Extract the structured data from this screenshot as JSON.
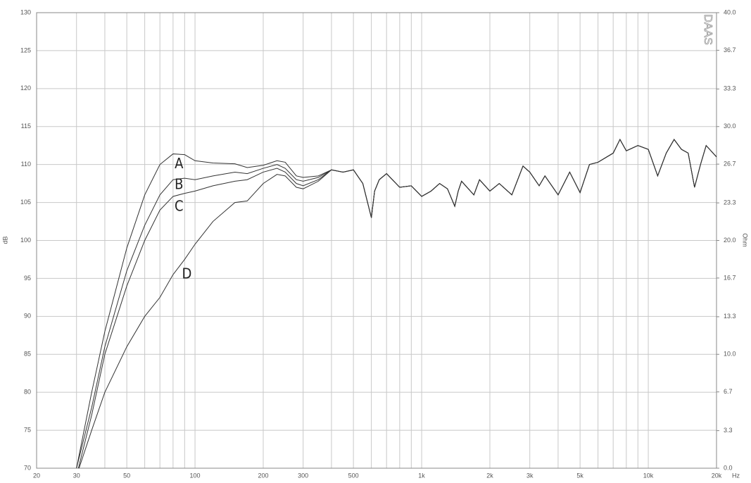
{
  "chart_data": {
    "type": "line",
    "watermark": "DAAS",
    "y_label": "dB",
    "y2_label": "Ohm",
    "x_unit": "Hz",
    "xscale": "log",
    "x": [
      30,
      35,
      40,
      50,
      60,
      70,
      80,
      90,
      100,
      120,
      150,
      170,
      200,
      230,
      250,
      280,
      300,
      350,
      400,
      450,
      500,
      550,
      600,
      620,
      650,
      700,
      800,
      900,
      1000,
      1100,
      1200,
      1300,
      1400,
      1450,
      1500,
      1700,
      1800,
      2000,
      2200,
      2500,
      2800,
      3000,
      3300,
      3500,
      4000,
      4500,
      5000,
      5500,
      6000,
      7000,
      7500,
      8000,
      9000,
      10000,
      11000,
      12000,
      13000,
      14000,
      15000,
      16000,
      17000,
      18000,
      20000
    ],
    "series": [
      {
        "name": "A",
        "color": "#333333",
        "values": [
          70,
          80,
          88,
          99,
          106,
          110,
          111.4,
          111.3,
          110.5,
          110.2,
          110.1,
          109.6,
          109.9,
          110.5,
          110.3,
          108.5,
          108.3,
          108.5,
          109.3,
          109.0,
          109.3,
          107.5,
          103.0,
          106.5,
          108.0,
          108.8,
          107.0,
          107.2,
          105.8,
          106.5,
          107.5,
          106.8,
          104.5,
          106.5,
          107.8,
          106.0,
          108.0,
          106.5,
          107.5,
          106.0,
          109.8,
          109.0,
          107.2,
          108.5,
          106.0,
          109.0,
          106.3,
          110.0,
          110.3,
          111.5,
          113.3,
          111.8,
          112.5,
          112.0,
          108.5,
          111.5,
          113.3,
          112.0,
          111.5,
          107.0,
          110.0,
          112.5,
          111.0
        ]
      },
      {
        "name": "B",
        "color": "#333333",
        "values": [
          70,
          78,
          86,
          96,
          102,
          106,
          108,
          108.2,
          108.0,
          108.5,
          109.0,
          108.8,
          109.5,
          110.0,
          109.5,
          108.0,
          107.8,
          108.3,
          109.3,
          109.0,
          109.3,
          107.5,
          103.0,
          106.5,
          108.0,
          108.8,
          107.0,
          107.2,
          105.8,
          106.5,
          107.5,
          106.8,
          104.5,
          106.5,
          107.8,
          106.0,
          108.0,
          106.5,
          107.5,
          106.0,
          109.8,
          109.0,
          107.2,
          108.5,
          106.0,
          109.0,
          106.3,
          110.0,
          110.3,
          111.5,
          113.3,
          111.8,
          112.5,
          112.0,
          108.5,
          111.5,
          113.3,
          112.0,
          111.5,
          107.0,
          110.0,
          112.5,
          111.0
        ]
      },
      {
        "name": "C",
        "color": "#333333",
        "values": [
          69,
          77,
          85,
          94,
          100,
          104,
          105.8,
          106.2,
          106.5,
          107.2,
          107.8,
          108.0,
          109.0,
          109.5,
          109.0,
          107.5,
          107.2,
          108.0,
          109.3,
          109.0,
          109.3,
          107.5,
          103.0,
          106.5,
          108.0,
          108.8,
          107.0,
          107.2,
          105.8,
          106.5,
          107.5,
          106.8,
          104.5,
          106.5,
          107.8,
          106.0,
          108.0,
          106.5,
          107.5,
          106.0,
          109.8,
          109.0,
          107.2,
          108.5,
          106.0,
          109.0,
          106.3,
          110.0,
          110.3,
          111.5,
          113.3,
          111.8,
          112.5,
          112.0,
          108.5,
          111.5,
          113.3,
          112.0,
          111.5,
          107.0,
          110.0,
          112.5,
          111.0
        ]
      },
      {
        "name": "D",
        "color": "#333333",
        "values": [
          69,
          75,
          80,
          86,
          90,
          92.5,
          95.5,
          97.5,
          99.5,
          102.5,
          105,
          105.2,
          107.5,
          108.7,
          108.5,
          107.0,
          106.8,
          107.8,
          109.3,
          109.0,
          109.3,
          107.5,
          103.0,
          106.5,
          108.0,
          108.8,
          107.0,
          107.2,
          105.8,
          106.5,
          107.5,
          106.8,
          104.5,
          106.5,
          107.8,
          106.0,
          108.0,
          106.5,
          107.5,
          106.0,
          109.8,
          109.0,
          107.2,
          108.5,
          106.0,
          109.0,
          106.3,
          110.0,
          110.3,
          111.5,
          113.3,
          111.8,
          112.5,
          112.0,
          108.5,
          111.5,
          113.3,
          112.0,
          111.5,
          107.0,
          110.0,
          112.5,
          111.0
        ]
      }
    ],
    "xlim": [
      20,
      20000
    ],
    "xticks": [
      20,
      30,
      50,
      100,
      200,
      300,
      500,
      {
        "value": 1000,
        "label": "1k"
      },
      {
        "value": 2000,
        "label": "2k"
      },
      {
        "value": 3000,
        "label": "3k"
      },
      {
        "value": 5000,
        "label": "5k"
      },
      {
        "value": 10000,
        "label": "10k"
      },
      {
        "value": 20000,
        "label": "20k"
      }
    ],
    "xminor": [
      40,
      60,
      70,
      80,
      90,
      400,
      600,
      700,
      800,
      900,
      4000,
      6000,
      7000,
      8000,
      9000
    ],
    "ylim": [
      70,
      130
    ],
    "yticks": [
      70,
      75,
      80,
      85,
      90,
      95,
      100,
      105,
      110,
      115,
      120,
      125,
      130
    ],
    "y2lim": [
      0,
      40
    ],
    "y2ticks": [
      {
        "value": 0,
        "label": "0.0"
      },
      3.3,
      6.7,
      {
        "value": 10,
        "label": "10.0"
      },
      13.3,
      16.7,
      {
        "value": 20,
        "label": "20.0"
      },
      23.3,
      26.7,
      {
        "value": 30,
        "label": "30.0"
      },
      33.3,
      36.7,
      {
        "value": 40,
        "label": "40.0"
      }
    ],
    "grid": true
  }
}
